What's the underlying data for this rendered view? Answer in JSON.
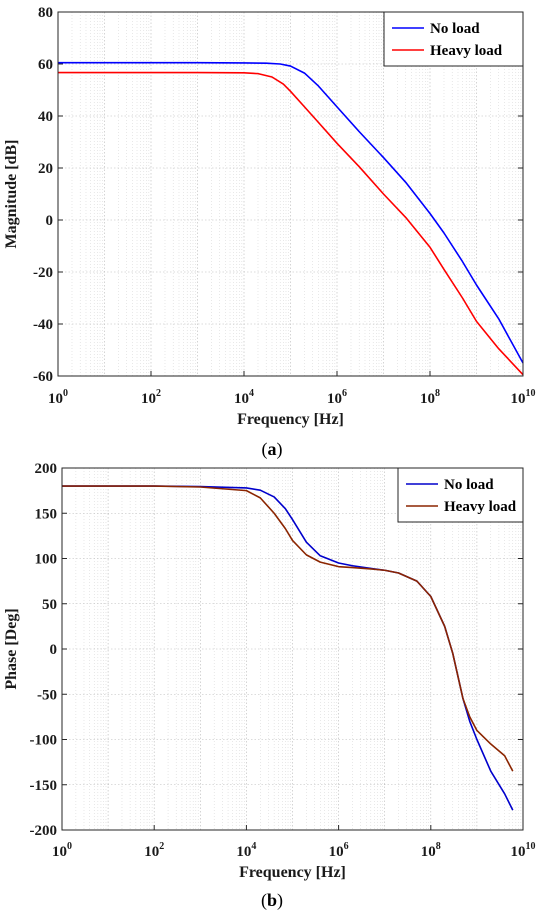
{
  "chart_data": [
    {
      "type": "line",
      "panel_label": "a",
      "xlabel": "Frequency [Hz]",
      "ylabel": "Magnitude [dB]",
      "xscale": "log",
      "xlim": [
        1,
        10000000000
      ],
      "ylim": [
        -60,
        80
      ],
      "xticks": [
        1,
        100,
        10000,
        1000000,
        100000000,
        10000000000
      ],
      "xtick_labels": [
        {
          "base": "10",
          "exp": "0"
        },
        {
          "base": "10",
          "exp": "2"
        },
        {
          "base": "10",
          "exp": "4"
        },
        {
          "base": "10",
          "exp": "6"
        },
        {
          "base": "10",
          "exp": "8"
        },
        {
          "base": "10",
          "exp": "10"
        }
      ],
      "yticks": [
        "-60",
        "-40",
        "-20",
        "0",
        "20",
        "40",
        "60",
        "80"
      ],
      "grid": true,
      "legend_position": "top-right",
      "series": [
        {
          "name": "No load",
          "color": "#0000ff",
          "x": [
            1,
            10,
            100,
            1000,
            10000,
            30000,
            60000,
            100000,
            200000,
            400000,
            1000000,
            3000000,
            10000000,
            30000000,
            100000000,
            200000000,
            500000000,
            1000000000,
            3000000000,
            10000000000
          ],
          "y": [
            60.5,
            60.5,
            60.5,
            60.5,
            60.4,
            60.3,
            60,
            59.2,
            56.5,
            51.5,
            43.5,
            34,
            24,
            14.5,
            2.5,
            -5,
            -16,
            -25,
            -38,
            -55
          ]
        },
        {
          "name": "Heavy load",
          "color": "#ff0000",
          "x": [
            1,
            10,
            100,
            1000,
            10000,
            20000,
            40000,
            70000,
            100000,
            200000,
            400000,
            1000000,
            3000000,
            10000000,
            30000000,
            100000000,
            200000000,
            500000000,
            1000000000,
            3000000000,
            10000000000
          ],
          "y": [
            56.7,
            56.7,
            56.7,
            56.7,
            56.6,
            56.3,
            55,
            52.3,
            49.5,
            43.5,
            37.5,
            29.5,
            20.5,
            10,
            1,
            -10.5,
            -19,
            -30,
            -39,
            -49.5,
            -59.5
          ]
        }
      ]
    },
    {
      "type": "line",
      "panel_label": "b",
      "xlabel": "Frequency [Hz]",
      "ylabel": "Phase [Deg]",
      "xscale": "log",
      "xlim": [
        1,
        10000000000
      ],
      "ylim": [
        -200,
        200
      ],
      "xticks": [
        1,
        100,
        10000,
        1000000,
        100000000,
        10000000000
      ],
      "xtick_labels": [
        {
          "base": "10",
          "exp": "0"
        },
        {
          "base": "10",
          "exp": "2"
        },
        {
          "base": "10",
          "exp": "4"
        },
        {
          "base": "10",
          "exp": "6"
        },
        {
          "base": "10",
          "exp": "8"
        },
        {
          "base": "10",
          "exp": "10"
        }
      ],
      "yticks": [
        "-200",
        "-150",
        "-100",
        "-50",
        "0",
        "50",
        "100",
        "150",
        "200"
      ],
      "grid": true,
      "legend_position": "top-right",
      "series": [
        {
          "name": "No load",
          "color": "#0000cc",
          "x": [
            1,
            10,
            100,
            1000,
            10000,
            20000,
            40000,
            70000,
            100000,
            200000,
            400000,
            1000000,
            2000000,
            5000000,
            10000000,
            20000000,
            50000000,
            100000000,
            200000000,
            300000000,
            500000000,
            700000000,
            1000000000,
            2000000000,
            4000000000,
            6000000000
          ],
          "y": [
            180,
            180,
            180,
            179.5,
            178,
            175.5,
            168,
            155,
            143,
            118,
            103,
            95,
            92,
            89,
            87,
            84,
            75,
            58,
            25,
            -5,
            -55,
            -80,
            -100,
            -135,
            -160,
            -178
          ]
        },
        {
          "name": "Heavy load",
          "color": "#8b2500",
          "x": [
            1,
            10,
            100,
            1000,
            10000,
            20000,
            40000,
            70000,
            100000,
            200000,
            400000,
            1000000,
            2000000,
            5000000,
            10000000,
            20000000,
            50000000,
            100000000,
            200000000,
            300000000,
            500000000,
            700000000,
            1000000000,
            2000000000,
            4000000000,
            6000000000
          ],
          "y": [
            180,
            180,
            180,
            179,
            175,
            167,
            150,
            133,
            120,
            104,
            96,
            91,
            90,
            88.5,
            87,
            84,
            75,
            58,
            25,
            -5,
            -55,
            -75,
            -90,
            -105,
            -118,
            -135
          ]
        }
      ]
    }
  ],
  "captions": [
    {
      "open": "(",
      "letter": "a",
      "close": ")"
    },
    {
      "open": "(",
      "letter": "b",
      "close": ")"
    }
  ]
}
